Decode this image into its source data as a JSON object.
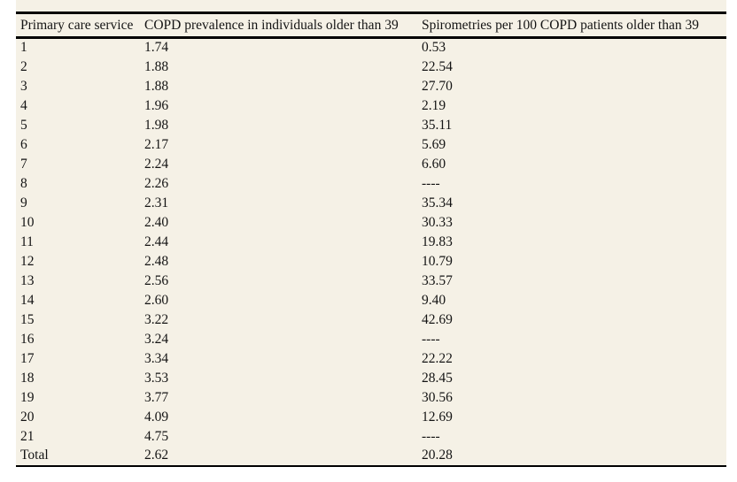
{
  "table": {
    "columns": [
      "Primary care service",
      "COPD prevalence in individuals older than 39",
      "Spirometries per 100 COPD patients older than 39"
    ],
    "rows": [
      {
        "service": "1",
        "prevalence": "1.74",
        "spirometries": "0.53"
      },
      {
        "service": "2",
        "prevalence": "1.88",
        "spirometries": "22.54"
      },
      {
        "service": "3",
        "prevalence": "1.88",
        "spirometries": "27.70"
      },
      {
        "service": "4",
        "prevalence": "1.96",
        "spirometries": "2.19"
      },
      {
        "service": "5",
        "prevalence": "1.98",
        "spirometries": "35.11"
      },
      {
        "service": "6",
        "prevalence": "2.17",
        "spirometries": "5.69"
      },
      {
        "service": "7",
        "prevalence": "2.24",
        "spirometries": "6.60"
      },
      {
        "service": "8",
        "prevalence": "2.26",
        "spirometries": "----"
      },
      {
        "service": "9",
        "prevalence": "2.31",
        "spirometries": "35.34"
      },
      {
        "service": "10",
        "prevalence": "2.40",
        "spirometries": "30.33"
      },
      {
        "service": "11",
        "prevalence": "2.44",
        "spirometries": "19.83"
      },
      {
        "service": "12",
        "prevalence": "2.48",
        "spirometries": "10.79"
      },
      {
        "service": "13",
        "prevalence": "2.56",
        "spirometries": "33.57"
      },
      {
        "service": "14",
        "prevalence": "2.60",
        "spirometries": "9.40"
      },
      {
        "service": "15",
        "prevalence": "3.22",
        "spirometries": "42.69"
      },
      {
        "service": "16",
        "prevalence": "3.24",
        "spirometries": "----"
      },
      {
        "service": "17",
        "prevalence": "3.34",
        "spirometries": "22.22"
      },
      {
        "service": "18",
        "prevalence": "3.53",
        "spirometries": "28.45"
      },
      {
        "service": "19",
        "prevalence": "3.77",
        "spirometries": "30.56"
      },
      {
        "service": "20",
        "prevalence": "4.09",
        "spirometries": "12.69"
      },
      {
        "service": "21",
        "prevalence": "4.75",
        "spirometries": "----"
      },
      {
        "service": "Total",
        "prevalence": "2.62",
        "spirometries": "20.28"
      }
    ],
    "missing_value_marker": "----"
  },
  "colors": {
    "page_background": "#ffffff",
    "table_background": "#f5f1e6",
    "rule_color": "#000000",
    "text_color": "#141414"
  }
}
